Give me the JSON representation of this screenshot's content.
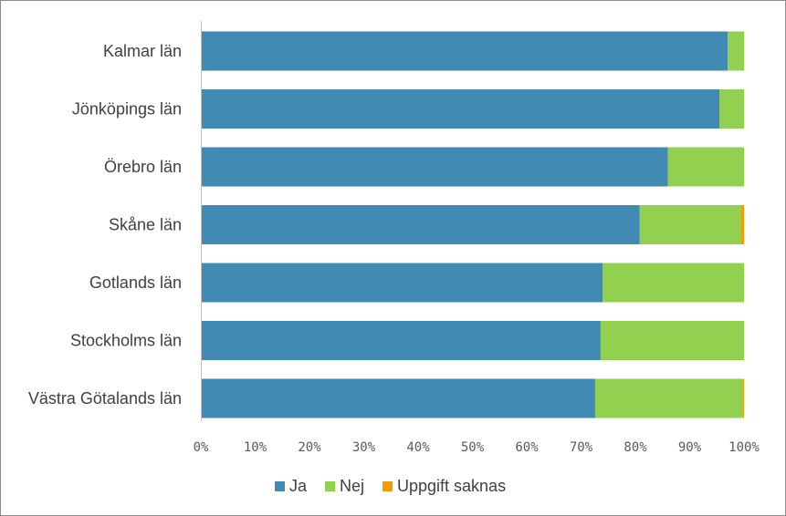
{
  "chart_data": {
    "type": "bar",
    "orientation": "horizontal",
    "stacked": "percent",
    "categories": [
      "Kalmar län",
      "Jönköpings län",
      "Örebro län",
      "Skåne län",
      "Gotlands län",
      "Stockholms län",
      "Västra Götalands län"
    ],
    "series": [
      {
        "name": "Ja",
        "color": "#418ab3",
        "values": [
          97,
          95.5,
          86,
          80.8,
          74,
          73.6,
          72.6
        ]
      },
      {
        "name": "Nej",
        "color": "#92d050",
        "values": [
          3,
          4.5,
          14,
          18.7,
          26,
          26.4,
          27.1
        ]
      },
      {
        "name": "Uppgift saknas",
        "color": "#f59d00",
        "values": [
          0,
          0,
          0,
          0.5,
          0,
          0,
          0.3
        ]
      }
    ],
    "xticks": [
      "0%",
      "10%",
      "20%",
      "30%",
      "40%",
      "50%",
      "60%",
      "70%",
      "80%",
      "90%",
      "100%"
    ],
    "xlim": [
      0,
      100
    ],
    "grid": false,
    "legend": "bottom"
  }
}
